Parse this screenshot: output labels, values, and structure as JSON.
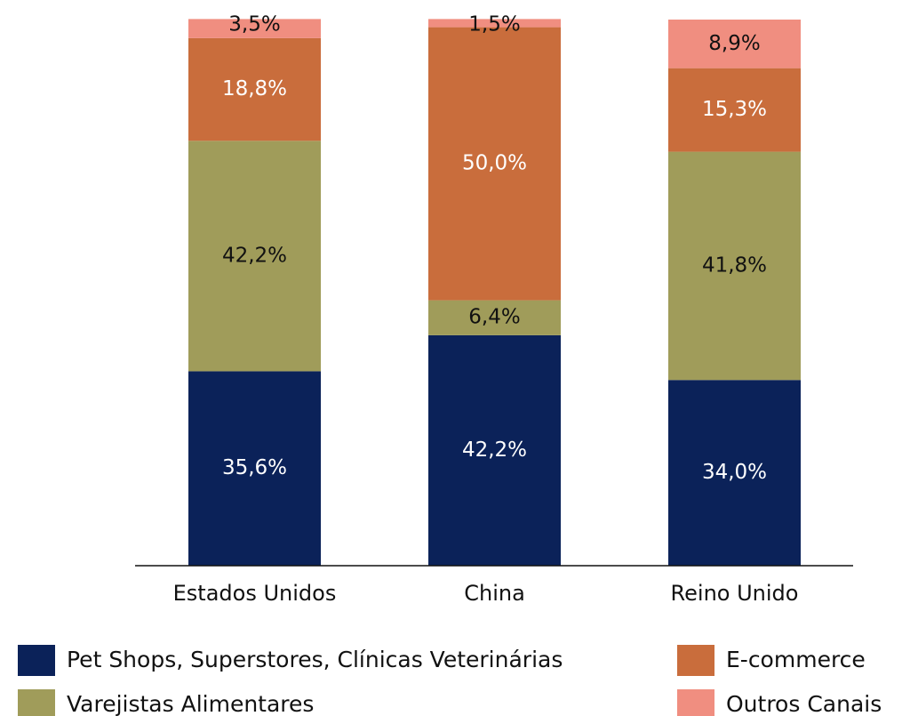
{
  "chart_data": {
    "type": "stacked_bar",
    "categories": [
      "Estados Unidos",
      "China",
      "Reino Unido"
    ],
    "series": [
      {
        "name": "Pet Shops, Superstores, Clínicas Veterinárias",
        "color": "#0b2259",
        "values": [
          35.6,
          42.2,
          34.0
        ],
        "value_labels": [
          "35,6%",
          "42,2%",
          "34,0%"
        ]
      },
      {
        "name": "Varejistas Alimentares",
        "color": "#a09c5a",
        "values": [
          42.2,
          6.4,
          41.8
        ],
        "value_labels": [
          "42,2%",
          "6,4%",
          "41,8%"
        ]
      },
      {
        "name": "E-commerce",
        "color": "#c96d3c",
        "values": [
          18.8,
          50.0,
          15.3
        ],
        "value_labels": [
          "18,8%",
          "50,0%",
          "15,3%"
        ]
      },
      {
        "name": "Outros Canais",
        "color": "#f08e80",
        "values": [
          3.5,
          1.5,
          8.9
        ],
        "value_labels": [
          "3,5%",
          "1,5%",
          "8,9%"
        ]
      }
    ],
    "ylim": [
      0,
      100
    ]
  }
}
